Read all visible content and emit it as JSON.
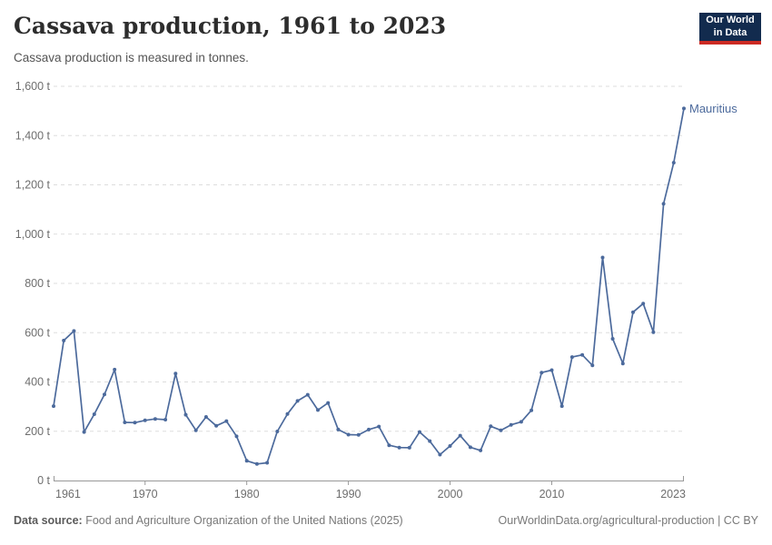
{
  "header": {
    "title": "Cassava production, 1961 to 2023",
    "subtitle": "Cassava production is measured in tonnes."
  },
  "logo": {
    "line1": "Our World",
    "line2": "in Data"
  },
  "entity_label": "Mauritius",
  "footer": {
    "datasource_label": "Data source:",
    "datasource_text": " Food and Agriculture Organization of the United Nations (2025)",
    "right_text": "OurWorldinData.org/agricultural-production | CC BY"
  },
  "colors": {
    "line": "#4C6A9C",
    "gridline": "#dddddd",
    "axis": "#999999",
    "axis_text": "#6e6e6e",
    "logo_bg": "#122b4e",
    "logo_red": "#cc2a23"
  },
  "chart_data": {
    "type": "line",
    "title": "Cassava production, 1961 to 2023",
    "ylabel": "tonnes",
    "unit": "t",
    "xlim": [
      1961,
      2023
    ],
    "ylim": [
      0,
      1600
    ],
    "grid": "horizontal-dashed",
    "legend_position": "end-of-line-label",
    "x": [
      1961,
      1962,
      1963,
      1964,
      1965,
      1966,
      1967,
      1968,
      1969,
      1970,
      1971,
      1972,
      1973,
      1974,
      1975,
      1976,
      1977,
      1978,
      1979,
      1980,
      1981,
      1982,
      1983,
      1984,
      1985,
      1986,
      1987,
      1988,
      1989,
      1990,
      1991,
      1992,
      1993,
      1994,
      1995,
      1996,
      1997,
      1998,
      1999,
      2000,
      2001,
      2002,
      2003,
      2004,
      2005,
      2006,
      2007,
      2008,
      2009,
      2010,
      2011,
      2012,
      2013,
      2014,
      2015,
      2016,
      2017,
      2018,
      2019,
      2020,
      2021,
      2022,
      2023
    ],
    "series": [
      {
        "name": "Mauritius",
        "color": "#4C6A9C",
        "values": [
          302,
          568,
          607,
          197,
          269,
          349,
          450,
          236,
          235,
          244,
          250,
          247,
          434,
          267,
          204,
          258,
          222,
          241,
          179,
          80,
          67,
          72,
          199,
          270,
          323,
          348,
          286,
          315,
          207,
          186,
          185,
          207,
          219,
          143,
          134,
          133,
          197,
          160,
          105,
          140,
          182,
          135,
          122,
          220,
          204,
          226,
          238,
          285,
          438,
          448,
          302,
          501,
          510,
          467,
          905,
          575,
          475,
          683,
          718,
          602,
          1123,
          1290,
          1510
        ]
      }
    ],
    "yticks": [
      {
        "value": 0,
        "label": "0 t"
      },
      {
        "value": 200,
        "label": "200 t"
      },
      {
        "value": 400,
        "label": "400 t"
      },
      {
        "value": 600,
        "label": "600 t"
      },
      {
        "value": 800,
        "label": "800 t"
      },
      {
        "value": 1000,
        "label": "1,000 t"
      },
      {
        "value": 1200,
        "label": "1,200 t"
      },
      {
        "value": 1400,
        "label": "1,400 t"
      },
      {
        "value": 1600,
        "label": "1,600 t"
      }
    ],
    "xticks": [
      {
        "value": 1961,
        "label": "1961"
      },
      {
        "value": 1970,
        "label": "1970"
      },
      {
        "value": 1980,
        "label": "1980"
      },
      {
        "value": 1990,
        "label": "1990"
      },
      {
        "value": 2000,
        "label": "2000"
      },
      {
        "value": 2010,
        "label": "2010"
      },
      {
        "value": 2023,
        "label": "2023"
      }
    ]
  }
}
